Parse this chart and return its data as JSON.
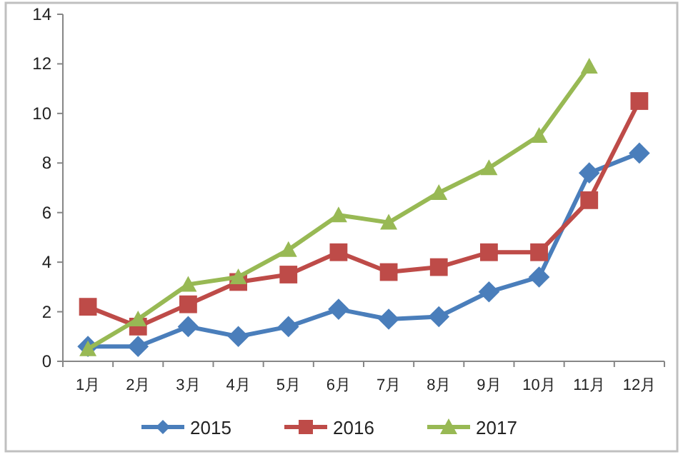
{
  "chart_data": {
    "type": "line",
    "categories": [
      "1月",
      "2月",
      "3月",
      "4月",
      "5月",
      "6月",
      "7月",
      "8月",
      "9月",
      "10月",
      "11月",
      "12月"
    ],
    "series": [
      {
        "name": "2015",
        "color": "#4a7ebb",
        "marker": "diamond",
        "values": [
          0.6,
          0.6,
          1.4,
          1.0,
          1.4,
          2.1,
          1.7,
          1.8,
          2.8,
          3.4,
          7.6,
          8.4
        ]
      },
      {
        "name": "2016",
        "color": "#be4b48",
        "marker": "square",
        "values": [
          2.2,
          1.4,
          2.3,
          3.2,
          3.5,
          4.4,
          3.6,
          3.8,
          4.4,
          4.4,
          6.5,
          10.5
        ]
      },
      {
        "name": "2017",
        "color": "#98b954",
        "marker": "triangle",
        "values": [
          0.5,
          1.7,
          3.1,
          3.4,
          4.5,
          5.9,
          5.6,
          6.8,
          7.8,
          9.1,
          11.9,
          null
        ]
      }
    ],
    "ylim": [
      0,
      14
    ],
    "yticks": [
      0,
      2,
      4,
      6,
      8,
      10,
      12,
      14
    ],
    "grid": false,
    "legend": "bottom"
  }
}
